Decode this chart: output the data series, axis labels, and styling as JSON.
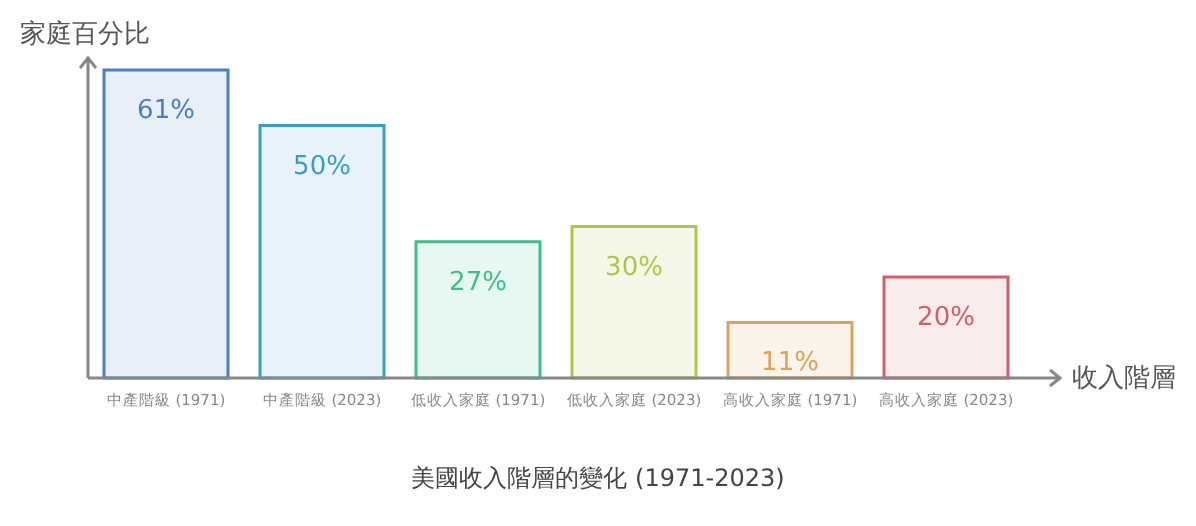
{
  "chart_data": {
    "type": "bar",
    "title": "美國收入階層的變化 (1971-2023)",
    "xlabel": "收入階層",
    "ylabel": "家庭百分比",
    "categories": [
      "中產階級 (1971)",
      "中產階級 (2023)",
      "低收入家庭 (1971)",
      "低收入家庭 (2023)",
      "高收入家庭 (1971)",
      "高收入家庭 (2023)"
    ],
    "values": [
      61,
      50,
      27,
      30,
      11,
      20
    ],
    "colors": [
      "#4a7fc1",
      "#3a9ec4",
      "#3cbf8a",
      "#b0c548",
      "#dda35c",
      "#cf5f6b"
    ],
    "value_labels": [
      "61%",
      "50%",
      "27%",
      "30%",
      "11%",
      "20%"
    ]
  }
}
